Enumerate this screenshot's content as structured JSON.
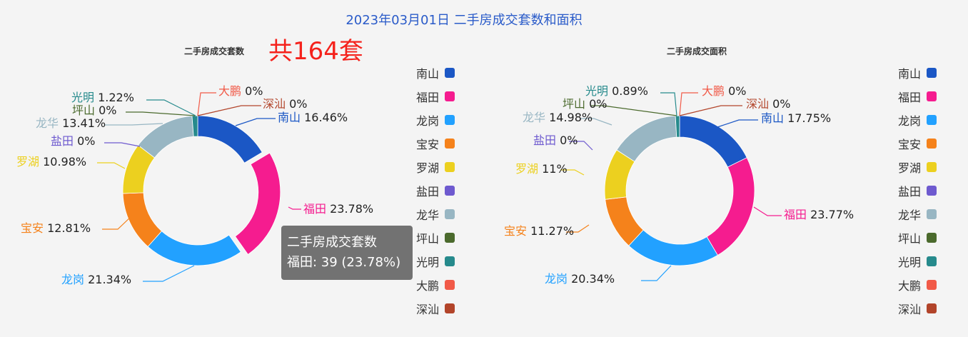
{
  "title": "2023年03月01日 二手房成交套数和面积",
  "colors": [
    "#1b57c5",
    "#f51c8f",
    "#22a1ff",
    "#f5821b",
    "#ecd01f",
    "#6e5acf",
    "#98b6c3",
    "#4b6a2d",
    "#268a8c",
    "#f15a48",
    "#b2442a"
  ],
  "chart_data": [
    {
      "type": "pie",
      "title": "二手房成交套数",
      "total_label": "共164套",
      "categories": [
        "南山",
        "福田",
        "龙岗",
        "宝安",
        "罗湖",
        "盐田",
        "龙华",
        "坪山",
        "光明",
        "大鹏",
        "深汕"
      ],
      "values": [
        27,
        39,
        35,
        21,
        18,
        0,
        22,
        0,
        2,
        0,
        0
      ],
      "percents": [
        "16.46%",
        "23.78%",
        "21.34%",
        "12.81%",
        "10.98%",
        "0%",
        "13.41%",
        "0%",
        "1.22%",
        "0%",
        "0%"
      ],
      "highlighted": "福田",
      "tooltip": {
        "title": "二手房成交套数",
        "text": "福田: 39 (23.78%)"
      }
    },
    {
      "type": "pie",
      "title": "二手房成交面积",
      "categories": [
        "南山",
        "福田",
        "龙岗",
        "宝安",
        "罗湖",
        "盐田",
        "龙华",
        "坪山",
        "光明",
        "大鹏",
        "深汕"
      ],
      "values": [
        17.75,
        23.77,
        20.34,
        11.27,
        11,
        0,
        14.98,
        0,
        0.89,
        0,
        0
      ],
      "percents": [
        "17.75%",
        "23.77%",
        "20.34%",
        "11.27%",
        "11%",
        "0%",
        "14.98%",
        "0%",
        "0.89%",
        "0%",
        "0%"
      ]
    }
  ]
}
